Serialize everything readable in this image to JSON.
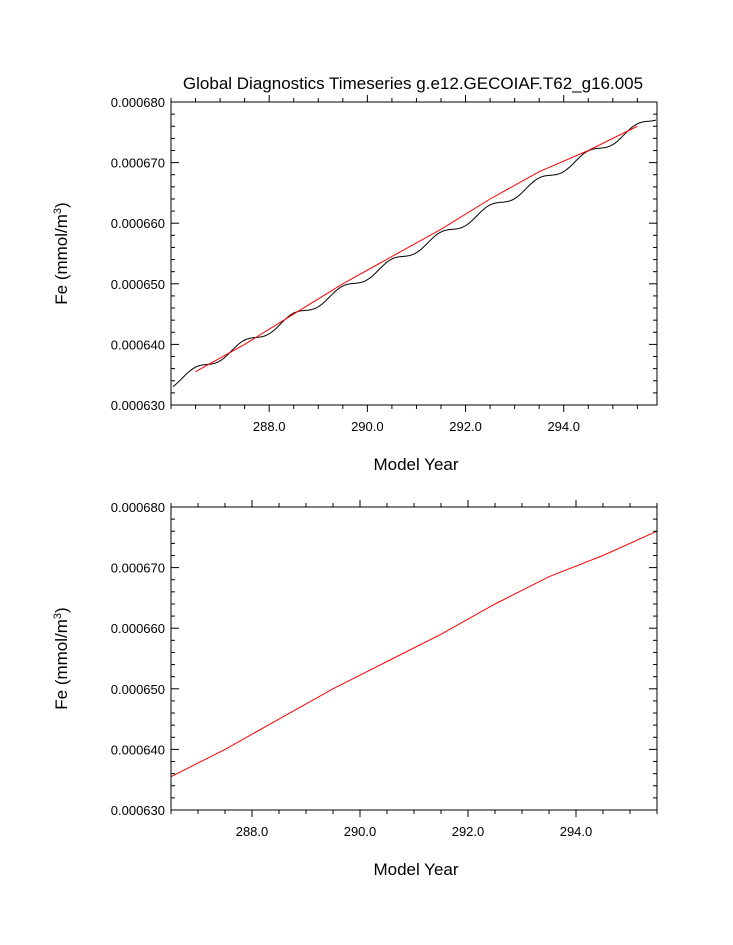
{
  "title": "Global Diagnostics Timeseries g.e12.GECOIAF.T62_g16.005",
  "colors": {
    "black": "#000000",
    "red": "#ff0000"
  },
  "chart_data": [
    {
      "type": "line",
      "title": "Global Diagnostics Timeseries g.e12.GECOIAF.T62_g16.005",
      "xlabel": "Model Year",
      "ylabel": {
        "prefix": "Fe (mmol/m",
        "sup": "3",
        "suffix": ")"
      },
      "xlim": [
        286.0,
        295.9
      ],
      "ylim": [
        0.00063,
        0.00068
      ],
      "xticks": [
        "288.0",
        "290.0",
        "292.0",
        "294.0"
      ],
      "xtick_values": [
        288.0,
        290.0,
        292.0,
        294.0
      ],
      "yticks": [
        "0.000630",
        "0.000640",
        "0.000650",
        "0.000660",
        "0.000670",
        "0.000680"
      ],
      "ytick_values": [
        0.00063,
        0.00064,
        0.00065,
        0.00066,
        0.00067,
        0.00068
      ],
      "series": [
        {
          "color": "#000000",
          "seasonal": true,
          "x_start": 286.04,
          "x_end": 295.88,
          "trend_start": 0.0006336,
          "trend_end": 0.0006775,
          "amplitude": 6e-07
        },
        {
          "color": "#ff0000",
          "x": [
            286.5,
            287.5,
            288.5,
            289.5,
            290.5,
            291.5,
            292.5,
            293.5,
            294.5,
            295.5
          ],
          "y": [
            0.0006355,
            0.00064,
            0.000645,
            0.00065,
            0.0006545,
            0.000659,
            0.000664,
            0.0006685,
            0.000672,
            0.000676
          ]
        }
      ]
    },
    {
      "type": "line",
      "xlabel": "Model Year",
      "ylabel": {
        "prefix": "Fe (mmol/m",
        "sup": "3",
        "suffix": ")"
      },
      "xlim": [
        286.5,
        295.5
      ],
      "ylim": [
        0.00063,
        0.00068
      ],
      "xticks": [
        "288.0",
        "290.0",
        "292.0",
        "294.0"
      ],
      "xtick_values": [
        288.0,
        290.0,
        292.0,
        294.0
      ],
      "yticks": [
        "0.000630",
        "0.000640",
        "0.000650",
        "0.000660",
        "0.000670",
        "0.000680"
      ],
      "ytick_values": [
        0.00063,
        0.00064,
        0.00065,
        0.00066,
        0.00067,
        0.00068
      ],
      "series": [
        {
          "color": "#ff0000",
          "x": [
            286.5,
            287.5,
            288.5,
            289.5,
            290.5,
            291.5,
            292.5,
            293.5,
            294.5,
            295.5
          ],
          "y": [
            0.0006355,
            0.00064,
            0.000645,
            0.00065,
            0.0006545,
            0.000659,
            0.000664,
            0.0006685,
            0.000672,
            0.000676
          ]
        }
      ]
    }
  ]
}
